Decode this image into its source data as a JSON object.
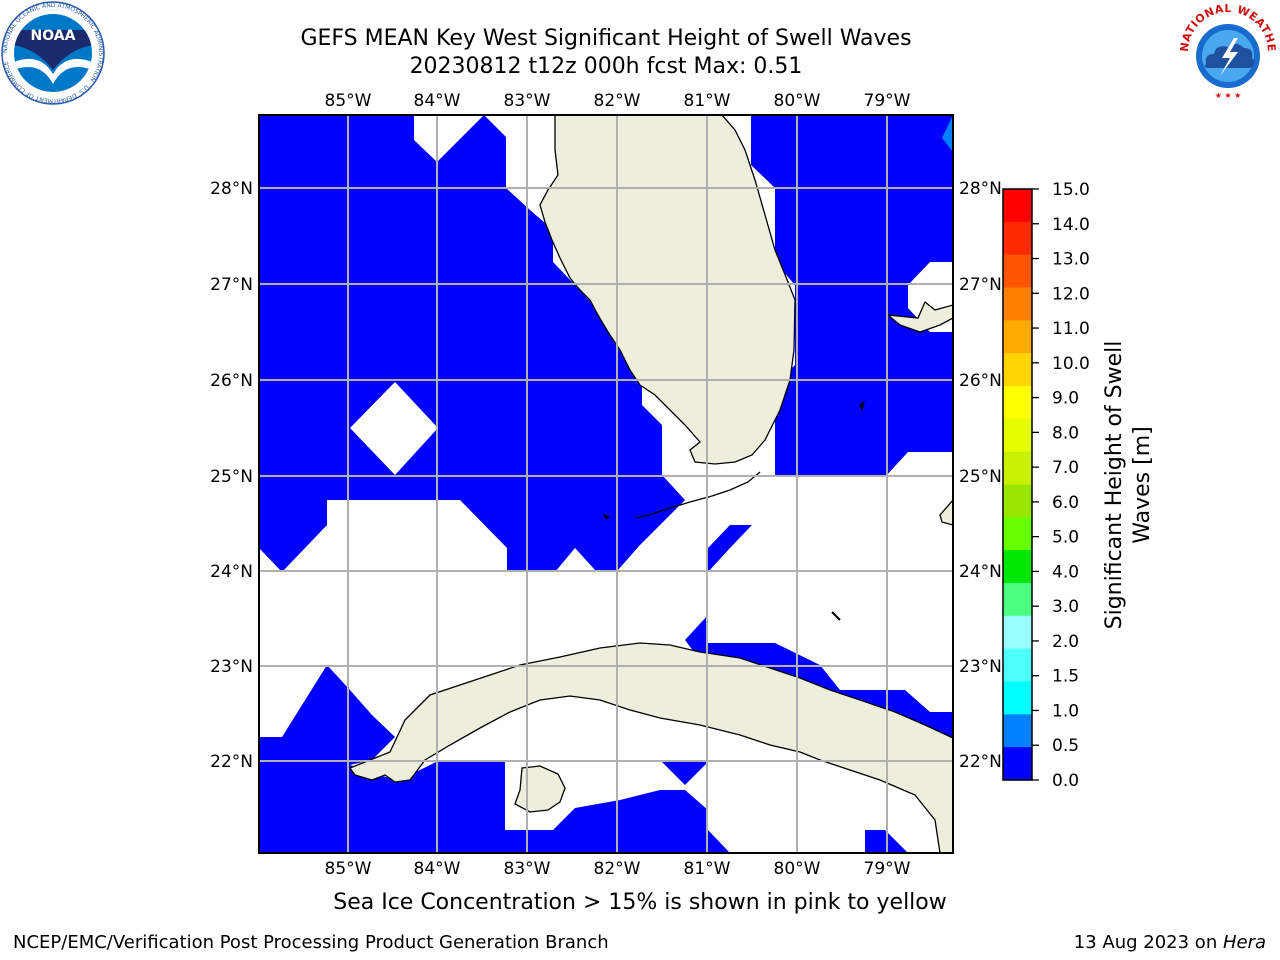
{
  "title": {
    "line1": "GEFS MEAN Key West Significant Height of Swell Waves",
    "line2": "20230812 t12z 000h fcst   Max: 0.51"
  },
  "map": {
    "lon_range": [
      -86.0,
      -78.25
    ],
    "lat_range": [
      21.0,
      28.8
    ],
    "lon_ticks": [
      "85°W",
      "84°W",
      "83°W",
      "82°W",
      "81°W",
      "80°W",
      "79°W"
    ],
    "lat_ticks": [
      "28°N",
      "27°N",
      "26°N",
      "25°N",
      "24°N",
      "23°N",
      "22°N"
    ],
    "grid": true,
    "colors": {
      "ocean_fill": "#0000ff",
      "land": "#eeeedd",
      "grid": "#b0b0b0",
      "no_data": "#ffffff",
      "light_blue": "#0080ff"
    }
  },
  "colorbar": {
    "label_line1": "Significant Height of Swell",
    "label_line2": "Waves [m]",
    "ticks": [
      "15.0",
      "14.0",
      "13.0",
      "12.0",
      "11.0",
      "10.0",
      "9.0",
      "8.0",
      "7.0",
      "6.0",
      "5.0",
      "4.0",
      "3.0",
      "2.0",
      "1.5",
      "1.0",
      "0.5",
      "0.0"
    ],
    "colors": [
      "#ff0000",
      "#ff2a00",
      "#ff5500",
      "#ff8000",
      "#ffaa00",
      "#ffd400",
      "#ffff00",
      "#e6ff00",
      "#c8f000",
      "#99e600",
      "#66ff00",
      "#00e600",
      "#4dff80",
      "#99ffff",
      "#4dffff",
      "#00ffff",
      "#0080ff",
      "#0000ff"
    ]
  },
  "subtitle": "Sea Ice Concentration > 15% is shown in pink to yellow",
  "footer": {
    "left": "NCEP/EMC/Verification Post Processing Product Generation Branch",
    "right_date": "13 Aug 2023 on ",
    "right_host": "Hera"
  },
  "logos": {
    "noaa_text": "NOAA",
    "noaa_ring": "NATIONAL OCEANIC AND ATMOSPHERIC ADMINISTRATION · U.S. DEPARTMENT OF COMMERCE ·",
    "nws_ring": "NATIONAL WEATHER SERVICE"
  }
}
